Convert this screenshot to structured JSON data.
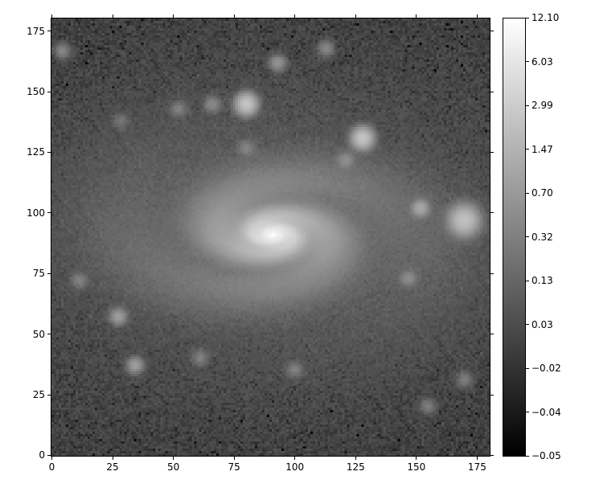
{
  "chart_data": {
    "type": "heatmap",
    "colormap": "gray",
    "x_ticks": [
      0,
      25,
      50,
      75,
      100,
      125,
      150,
      175
    ],
    "y_ticks": [
      0,
      25,
      50,
      75,
      100,
      125,
      150,
      175
    ],
    "xlim": [
      -0.5,
      180.5
    ],
    "ylim": [
      -0.5,
      180.5
    ],
    "image_size": [
      181,
      181
    ],
    "colorbar": {
      "ticks": [
        "12.10",
        "6.03",
        "2.99",
        "1.47",
        "0.70",
        "0.32",
        "0.13",
        "0.03",
        "−0.02",
        "−0.04",
        "−0.05"
      ],
      "range": [
        -0.05,
        12.1
      ]
    },
    "galaxy_center": [
      91,
      91
    ],
    "sources": [
      [
        80,
        145
      ],
      [
        128,
        131
      ],
      [
        170,
        97
      ],
      [
        152,
        102
      ],
      [
        93,
        162
      ],
      [
        27,
        57
      ],
      [
        34,
        37
      ],
      [
        66,
        145
      ],
      [
        4,
        167
      ],
      [
        113,
        168
      ],
      [
        155,
        20
      ],
      [
        170,
        31
      ],
      [
        11,
        72
      ],
      [
        147,
        73
      ],
      [
        100,
        35
      ],
      [
        61,
        40
      ],
      [
        52,
        143
      ],
      [
        28,
        138
      ],
      [
        80,
        127
      ],
      [
        121,
        122
      ]
    ]
  }
}
